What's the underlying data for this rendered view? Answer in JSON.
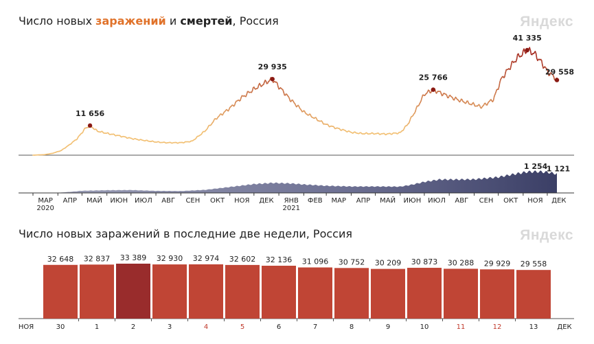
{
  "header": {
    "title_prefix": "Число новых ",
    "title_cases": "заражений",
    "title_mid": " и ",
    "title_deaths": "смертей",
    "title_suffix": ", Россия",
    "logo": "Яндекс"
  },
  "bottom_header": {
    "title": "Число новых заражений в последние две недели, Россия",
    "logo": "Яндекс"
  },
  "colors": {
    "cases_low": "#f2c074",
    "cases_high": "#a3281f",
    "deaths_area": "#3b3f66",
    "bar": "#c04535",
    "bar_highlight": "#992c2c",
    "weekend_tick": "#c0392b"
  },
  "chart_data": [
    {
      "type": "line",
      "title": "Число новых заражений и смертей, Россия",
      "series": [
        {
          "name": "заражений",
          "x": [
            "2020-03-01",
            "2020-03-15",
            "2020-03-25",
            "2020-04-05",
            "2020-04-15",
            "2020-04-25",
            "2020-05-05",
            "2020-05-11",
            "2020-05-20",
            "2020-06-01",
            "2020-06-15",
            "2020-07-01",
            "2020-07-15",
            "2020-08-01",
            "2020-08-15",
            "2020-09-01",
            "2020-09-15",
            "2020-10-01",
            "2020-10-15",
            "2020-11-01",
            "2020-11-15",
            "2020-12-01",
            "2020-12-15",
            "2020-12-24",
            "2021-01-01",
            "2021-01-15",
            "2021-02-01",
            "2021-02-15",
            "2021-03-01",
            "2021-03-15",
            "2021-04-01",
            "2021-04-15",
            "2021-05-01",
            "2021-05-15",
            "2021-06-01",
            "2021-06-10",
            "2021-06-20",
            "2021-07-01",
            "2021-07-12",
            "2021-07-25",
            "2021-08-10",
            "2021-08-25",
            "2021-09-10",
            "2021-09-25",
            "2021-10-05",
            "2021-10-15",
            "2021-10-25",
            "2021-11-06",
            "2021-11-15",
            "2021-11-25",
            "2021-12-01",
            "2021-12-10",
            "2021-12-13"
          ],
          "y": [
            10,
            200,
            700,
            1800,
            4000,
            6500,
            10500,
            11656,
            9500,
            8600,
            7700,
            6600,
            5900,
            5200,
            4900,
            4900,
            5500,
            9500,
            14500,
            18500,
            22500,
            26000,
            28500,
            29935,
            27000,
            22000,
            17000,
            14500,
            12000,
            10500,
            9000,
            8500,
            8500,
            8300,
            8800,
            12000,
            17500,
            24000,
            25766,
            24000,
            22000,
            20500,
            19000,
            22000,
            30000,
            34500,
            38500,
            41335,
            40000,
            36000,
            33000,
            30700,
            29558
          ],
          "annotations": [
            {
              "x": "2020-05-11",
              "label": "11 656"
            },
            {
              "x": "2020-12-24",
              "label": "29 935"
            },
            {
              "x": "2021-07-12",
              "label": "25 766"
            },
            {
              "x": "2021-11-06",
              "label": "41 335"
            },
            {
              "x": "2021-12-13",
              "label": "29 558"
            }
          ]
        },
        {
          "name": "смертей",
          "x": [
            "2020-03-01",
            "2020-04-01",
            "2020-04-15",
            "2020-05-01",
            "2020-06-01",
            "2020-07-01",
            "2020-08-01",
            "2020-09-01",
            "2020-10-01",
            "2020-11-01",
            "2020-12-01",
            "2020-12-24",
            "2021-01-15",
            "2021-02-01",
            "2021-03-01",
            "2021-04-01",
            "2021-05-01",
            "2021-06-01",
            "2021-06-15",
            "2021-07-01",
            "2021-07-20",
            "2021-08-15",
            "2021-09-01",
            "2021-10-01",
            "2021-10-20",
            "2021-11-06",
            "2021-11-20",
            "2021-12-01",
            "2021-12-13"
          ],
          "y": [
            0,
            10,
            60,
            130,
            160,
            170,
            120,
            110,
            180,
            350,
            520,
            590,
            560,
            500,
            420,
            380,
            380,
            370,
            480,
            650,
            790,
            790,
            800,
            930,
            1100,
            1240,
            1254,
            1220,
            1121
          ],
          "annotations": [
            {
              "x": "2021-11-20",
              "label": "1 254"
            },
            {
              "x": "2021-12-13",
              "label": "1 121"
            }
          ]
        }
      ],
      "x_ticks": [
        "МАР",
        "АПР",
        "МАЙ",
        "ИЮН",
        "ИЮЛ",
        "АВГ",
        "СЕН",
        "ОКТ",
        "НОЯ",
        "ДЕК",
        "ЯНВ",
        "ФЕВ",
        "МАР",
        "АПР",
        "МАЙ",
        "ИЮН",
        "ИЮЛ",
        "АВГ",
        "СЕН",
        "ОКТ",
        "НОЯ",
        "ДЕК"
      ],
      "year_labels": [
        {
          "at_tick": 0,
          "label": "2020"
        },
        {
          "at_tick": 10,
          "label": "2021"
        }
      ],
      "xlim": [
        "2020-03-01",
        "2021-12-13"
      ]
    },
    {
      "type": "bar",
      "title": "Число новых заражений в последние две недели, Россия",
      "categories": [
        "30",
        "1",
        "2",
        "3",
        "4",
        "5",
        "6",
        "7",
        "8",
        "9",
        "10",
        "11",
        "12",
        "13"
      ],
      "values": [
        32648,
        32837,
        33389,
        32930,
        32974,
        32602,
        32136,
        31096,
        30752,
        30209,
        30873,
        30288,
        29929,
        29558
      ],
      "value_labels": [
        "32 648",
        "32 837",
        "33 389",
        "32 930",
        "32 974",
        "32 602",
        "32 136",
        "31 096",
        "30 752",
        "30 209",
        "30 873",
        "30 288",
        "29 929",
        "29 558"
      ],
      "highlight_index": 2,
      "weekend_indices": [
        4,
        5,
        11,
        12
      ],
      "start_month": "НОЯ",
      "end_month": "ДЕК"
    }
  ]
}
